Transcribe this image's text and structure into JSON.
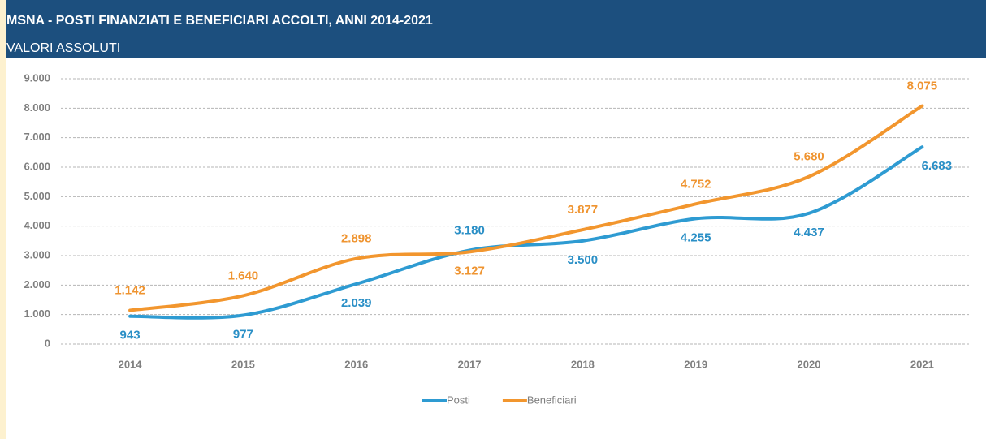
{
  "chart_data": {
    "type": "line",
    "title": "MSNA - POSTI FINANZIATI E BENEFICIARI ACCOLTI, ANNI 2014-2021",
    "subtitle": "VALORI ASSOLUTI",
    "categories": [
      "2014",
      "2015",
      "2016",
      "2017",
      "2018",
      "2019",
      "2020",
      "2021"
    ],
    "series": [
      {
        "name": "Posti",
        "color": "#2e9bd2",
        "label_color": "#2a8fc6",
        "values": [
          943,
          977,
          2039,
          3180,
          3500,
          4255,
          4437,
          6683
        ],
        "value_labels": [
          "943",
          "977",
          "2.039",
          "3.180",
          "3.500",
          "4.255",
          "4.437",
          "6.683"
        ]
      },
      {
        "name": "Beneficiari",
        "color": "#f2962e",
        "label_color": "#ef9430",
        "values": [
          1142,
          1640,
          2898,
          3127,
          3877,
          4752,
          5680,
          8075
        ],
        "value_labels": [
          "1.142",
          "1.640",
          "2.898",
          "3.127",
          "3.877",
          "4.752",
          "5.680",
          "8.075"
        ]
      }
    ],
    "ylim": [
      0,
      9000
    ],
    "yticks": [
      0,
      {
        "value": 1000,
        "label": "1.000"
      },
      {
        "value": 2000,
        "label": "2.000"
      },
      {
        "value": 3000,
        "label": "3.000"
      },
      {
        "value": 4000,
        "label": "4.000"
      },
      {
        "value": 5000,
        "label": "5.000"
      },
      {
        "value": 6000,
        "label": "6.000"
      },
      {
        "value": 7000,
        "label": "7.000"
      },
      {
        "value": 8000,
        "label": "8.000"
      },
      {
        "value": 9000,
        "label": "9.000"
      }
    ],
    "grid": true,
    "smooth": true,
    "legend": "bottom"
  }
}
